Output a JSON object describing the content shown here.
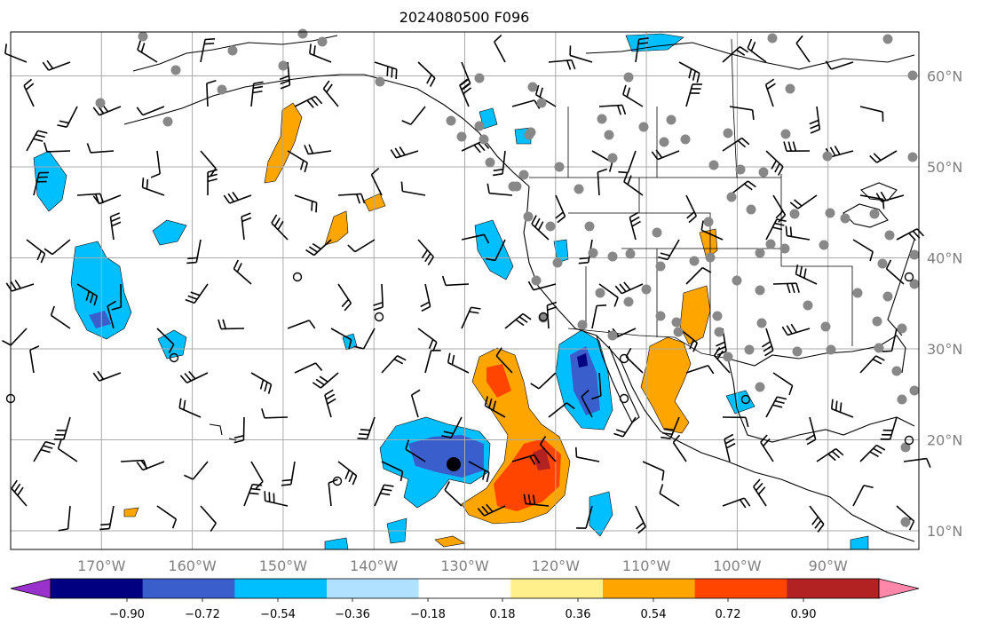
{
  "title": "2024080500 F096",
  "map": {
    "lon_range": [
      -180,
      -80
    ],
    "lat_range": [
      8,
      65
    ],
    "lon_labels": [
      "170°W",
      "160°W",
      "150°W",
      "140°W",
      "130°W",
      "120°W",
      "110°W",
      "100°W",
      "90°W"
    ],
    "lat_labels": [
      "60°N",
      "50°N",
      "40°N",
      "30°N",
      "20°N",
      "10°N"
    ],
    "gridline_color": "#aaaaaa",
    "coast_color": "#000000"
  },
  "colorbar": {
    "ticks": [
      "−0.90",
      "−0.72",
      "−0.54",
      "−0.36",
      "−0.18",
      "0.18",
      "0.36",
      "0.54",
      "0.72",
      "0.90"
    ],
    "colors": [
      "#9932cc",
      "#000080",
      "#3a5fcd",
      "#00bfff",
      "#b0e2ff",
      "#ffffff",
      "#fff08c",
      "#ffa500",
      "#ff4500",
      "#b22222",
      "#ff88aa"
    ],
    "extend": "both"
  },
  "fields": {
    "negative": [
      {
        "name": "hawaii-west",
        "level": "#00bfff"
      },
      {
        "name": "baja-west",
        "level": "#3a5fcd"
      },
      {
        "name": "south-central",
        "level": "#3a5fcd"
      }
    ],
    "positive": [
      {
        "name": "east-pacific-plume",
        "level": "#ff4500"
      },
      {
        "name": "mexico-sw-us",
        "level": "#ffa500"
      }
    ]
  },
  "markers": {
    "large_black_dot": "storm-center"
  }
}
